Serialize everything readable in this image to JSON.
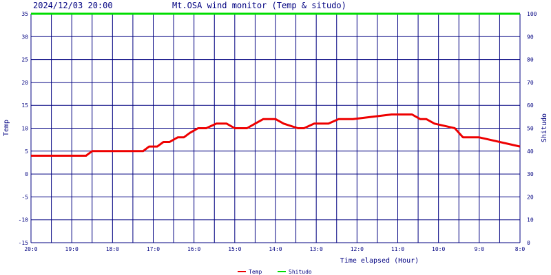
{
  "header": {
    "timestamp": "2024/12/03 20:00",
    "title": "Mt.OSA wind monitor (Temp & situdo)"
  },
  "colors": {
    "grid": "#000080",
    "temp": "#ee0000",
    "shitudo": "#00dd00",
    "text": "#000080"
  },
  "chart_data": {
    "type": "line",
    "title": "Mt.OSA wind monitor (Temp & situdo)",
    "xlabel": "Time elapsed (Hour)",
    "ylabel_left": "Temp",
    "ylabel_right": "Shitudo",
    "ylim_left": [
      -15,
      35
    ],
    "ylim_right": [
      0,
      100
    ],
    "xlim": [
      0,
      24
    ],
    "x_reversed": true,
    "x_tick_labels": [
      "20:0",
      "19:0",
      "18:0",
      "17:0",
      "16:0",
      "15:0",
      "14:0",
      "13:0",
      "12:0",
      "11:0",
      "10:0",
      "9:0",
      "8:0"
    ],
    "y_left_ticks": [
      35,
      30,
      25,
      20,
      15,
      10,
      5,
      0,
      -5,
      -10,
      -15
    ],
    "y_right_ticks": [
      100,
      90,
      80,
      70,
      60,
      50,
      40,
      30,
      20,
      10,
      0
    ],
    "grid": true,
    "legend_position": "bottom",
    "series": [
      {
        "name": "Temp",
        "axis": "left",
        "x": [
          0,
          2.7,
          3.0,
          5.5,
          5.8,
          6.2,
          6.5,
          6.8,
          7.2,
          7.5,
          7.8,
          8.2,
          8.6,
          9.1,
          9.6,
          10.0,
          10.6,
          11.0,
          11.4,
          12.0,
          12.4,
          13.1,
          13.4,
          13.9,
          14.6,
          15.1,
          15.8,
          17.7,
          18.0,
          18.7,
          19.1,
          19.4,
          19.8,
          20.8,
          21.2,
          22.0,
          24.0
        ],
        "y": [
          4,
          4,
          5,
          5,
          6,
          6,
          7,
          7,
          8,
          8,
          9,
          10,
          10,
          11,
          11,
          10,
          10,
          11,
          12,
          12,
          11,
          10,
          10,
          11,
          11,
          12,
          12,
          13,
          13,
          13,
          12,
          12,
          11,
          10,
          8,
          8,
          6
        ]
      },
      {
        "name": "Shitudo",
        "axis": "right",
        "x": [
          0,
          24
        ],
        "y": [
          100,
          100
        ]
      }
    ]
  }
}
